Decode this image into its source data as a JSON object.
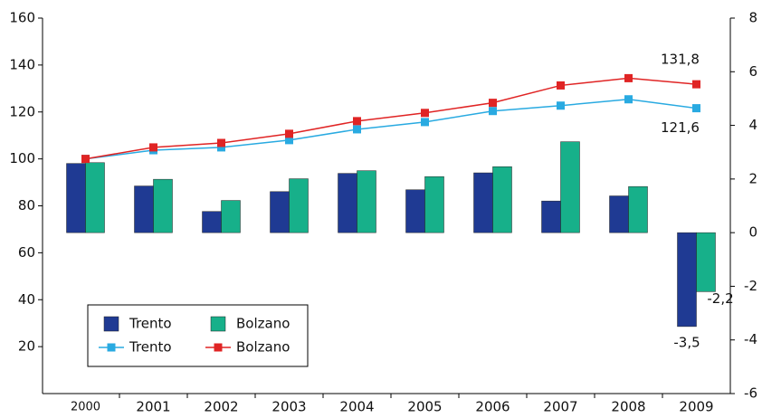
{
  "chart_data": {
    "type": "bar",
    "categories": [
      "2000",
      "2001",
      "2002",
      "2003",
      "2004",
      "2005",
      "2006",
      "2007",
      "2008",
      "2009"
    ],
    "series": [
      {
        "name": "Trento",
        "type": "bar",
        "axis": "y2",
        "color": "#1f3a93",
        "values": [
          2.58,
          1.74,
          0.79,
          1.53,
          2.21,
          1.6,
          2.23,
          1.18,
          1.37,
          -3.5
        ],
        "value_labels": [
          null,
          null,
          null,
          null,
          null,
          null,
          null,
          null,
          null,
          "-3,5"
        ]
      },
      {
        "name": "Bolzano",
        "type": "bar",
        "axis": "y2",
        "color": "#17b08a",
        "values": [
          2.61,
          1.99,
          1.2,
          2.01,
          2.31,
          2.09,
          2.46,
          3.39,
          1.72,
          -2.2
        ],
        "value_labels": [
          null,
          null,
          null,
          null,
          null,
          null,
          null,
          null,
          null,
          "-2,2"
        ]
      },
      {
        "name": "Trento",
        "type": "line",
        "color": "#29aae1",
        "values": [
          100,
          103.7,
          104.9,
          108,
          112.6,
          115.7,
          120.4,
          122.7,
          125.4,
          121.6
        ],
        "value_labels": [
          null,
          null,
          null,
          null,
          null,
          null,
          null,
          null,
          null,
          "121,6"
        ]
      },
      {
        "name": "Bolzano",
        "type": "line",
        "color": "#e02424",
        "values": [
          100,
          104.9,
          106.8,
          110.7,
          116.1,
          119.6,
          123.9,
          131.3,
          134.4,
          131.8
        ],
        "value_labels": [
          null,
          null,
          null,
          null,
          null,
          null,
          null,
          null,
          null,
          "131,8"
        ]
      }
    ],
    "ylim": [
      0,
      160
    ],
    "yticks": [
      20,
      40,
      60,
      80,
      100,
      120,
      140,
      160
    ],
    "y2lim": [
      -6,
      8
    ],
    "y2ticks": [
      -6,
      -4,
      -2,
      0,
      2,
      4,
      6,
      8
    ]
  }
}
